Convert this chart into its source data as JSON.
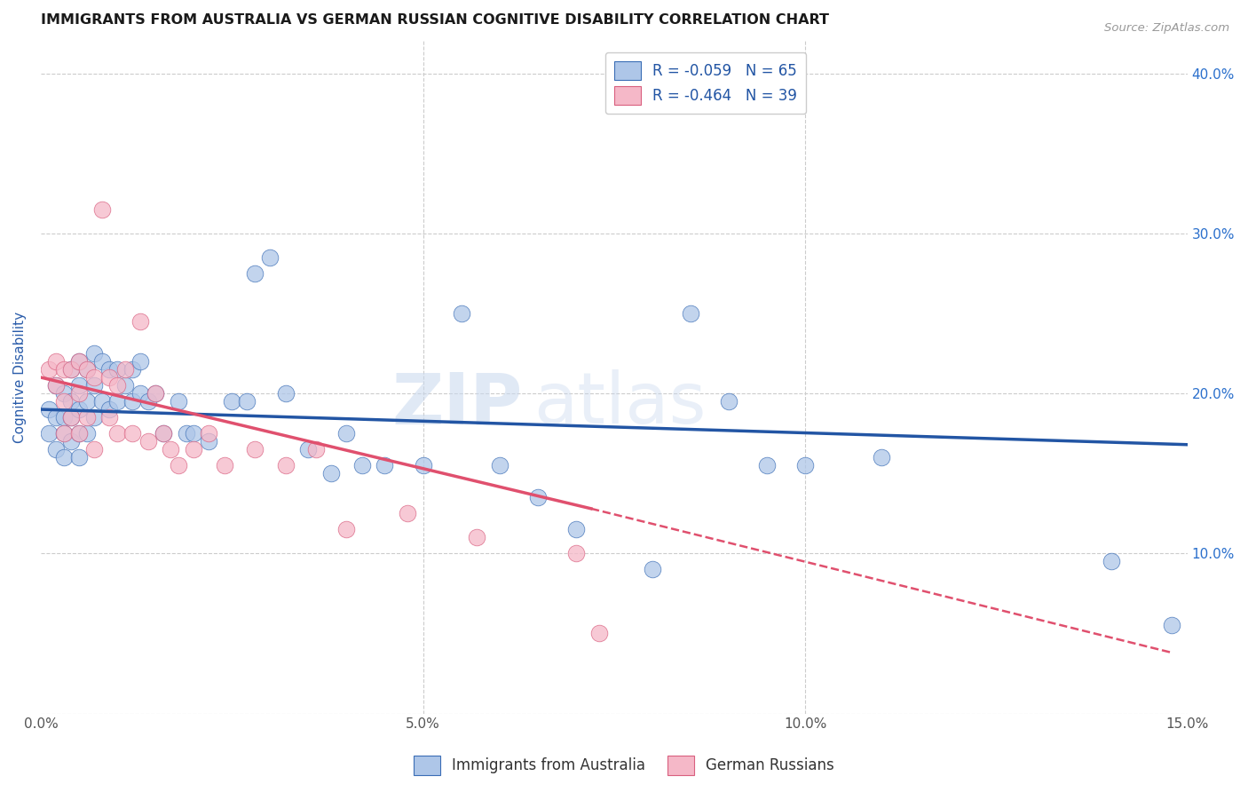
{
  "title": "IMMIGRANTS FROM AUSTRALIA VS GERMAN RUSSIAN COGNITIVE DISABILITY CORRELATION CHART",
  "source": "Source: ZipAtlas.com",
  "ylabel": "Cognitive Disability",
  "x_min": 0.0,
  "x_max": 0.15,
  "y_min": 0.0,
  "y_max": 0.42,
  "x_ticks": [
    0.0,
    0.05,
    0.1,
    0.15
  ],
  "x_tick_labels": [
    "0.0%",
    "5.0%",
    "10.0%",
    "15.0%"
  ],
  "y_ticks": [
    0.0,
    0.1,
    0.2,
    0.3,
    0.4
  ],
  "y_tick_labels_right": [
    "",
    "10.0%",
    "20.0%",
    "30.0%",
    "40.0%"
  ],
  "blue_color": "#aec6e8",
  "blue_edge_color": "#3a6db5",
  "pink_color": "#f5b8c8",
  "pink_edge_color": "#d95f7f",
  "blue_line_color": "#2255a4",
  "pink_line_color": "#e0506e",
  "legend_R1": "R = -0.059",
  "legend_N1": "N = 65",
  "legend_R2": "R = -0.464",
  "legend_N2": "N = 39",
  "legend_label1": "Immigrants from Australia",
  "legend_label2": "German Russians",
  "watermark_ZIP": "ZIP",
  "watermark_atlas": "atlas",
  "blue_line_x0": 0.0,
  "blue_line_y0": 0.19,
  "blue_line_x1": 0.15,
  "blue_line_y1": 0.168,
  "pink_line_x0": 0.0,
  "pink_line_y0": 0.21,
  "pink_line_x1_solid": 0.072,
  "pink_line_y1_solid": 0.128,
  "pink_line_x1_dash": 0.148,
  "pink_line_y1_dash": 0.038,
  "background_color": "#ffffff",
  "grid_color": "#cccccc",
  "title_color": "#1a1a1a",
  "ylabel_color": "#2a5caa",
  "tick_color_right": "#2a6fcc",
  "tick_color_bottom": "#555555",
  "blue_scatter_x": [
    0.001,
    0.001,
    0.002,
    0.002,
    0.002,
    0.003,
    0.003,
    0.003,
    0.003,
    0.004,
    0.004,
    0.004,
    0.004,
    0.005,
    0.005,
    0.005,
    0.005,
    0.005,
    0.006,
    0.006,
    0.006,
    0.007,
    0.007,
    0.007,
    0.008,
    0.008,
    0.009,
    0.009,
    0.01,
    0.01,
    0.011,
    0.012,
    0.012,
    0.013,
    0.013,
    0.014,
    0.015,
    0.016,
    0.018,
    0.019,
    0.02,
    0.022,
    0.025,
    0.027,
    0.028,
    0.03,
    0.032,
    0.035,
    0.038,
    0.04,
    0.042,
    0.045,
    0.05,
    0.055,
    0.06,
    0.065,
    0.07,
    0.08,
    0.085,
    0.09,
    0.095,
    0.1,
    0.11,
    0.14,
    0.148
  ],
  "blue_scatter_y": [
    0.19,
    0.175,
    0.205,
    0.185,
    0.165,
    0.2,
    0.185,
    0.175,
    0.16,
    0.215,
    0.195,
    0.185,
    0.17,
    0.22,
    0.205,
    0.19,
    0.175,
    0.16,
    0.215,
    0.195,
    0.175,
    0.225,
    0.205,
    0.185,
    0.22,
    0.195,
    0.215,
    0.19,
    0.215,
    0.195,
    0.205,
    0.215,
    0.195,
    0.22,
    0.2,
    0.195,
    0.2,
    0.175,
    0.195,
    0.175,
    0.175,
    0.17,
    0.195,
    0.195,
    0.275,
    0.285,
    0.2,
    0.165,
    0.15,
    0.175,
    0.155,
    0.155,
    0.155,
    0.25,
    0.155,
    0.135,
    0.115,
    0.09,
    0.25,
    0.195,
    0.155,
    0.155,
    0.16,
    0.095,
    0.055
  ],
  "pink_scatter_x": [
    0.001,
    0.002,
    0.002,
    0.003,
    0.003,
    0.003,
    0.004,
    0.004,
    0.005,
    0.005,
    0.005,
    0.006,
    0.006,
    0.007,
    0.007,
    0.008,
    0.009,
    0.009,
    0.01,
    0.01,
    0.011,
    0.012,
    0.013,
    0.014,
    0.015,
    0.016,
    0.017,
    0.018,
    0.02,
    0.022,
    0.024,
    0.028,
    0.032,
    0.036,
    0.04,
    0.048,
    0.057,
    0.07,
    0.073
  ],
  "pink_scatter_y": [
    0.215,
    0.22,
    0.205,
    0.215,
    0.195,
    0.175,
    0.215,
    0.185,
    0.22,
    0.2,
    0.175,
    0.215,
    0.185,
    0.21,
    0.165,
    0.315,
    0.21,
    0.185,
    0.205,
    0.175,
    0.215,
    0.175,
    0.245,
    0.17,
    0.2,
    0.175,
    0.165,
    0.155,
    0.165,
    0.175,
    0.155,
    0.165,
    0.155,
    0.165,
    0.115,
    0.125,
    0.11,
    0.1,
    0.05
  ]
}
